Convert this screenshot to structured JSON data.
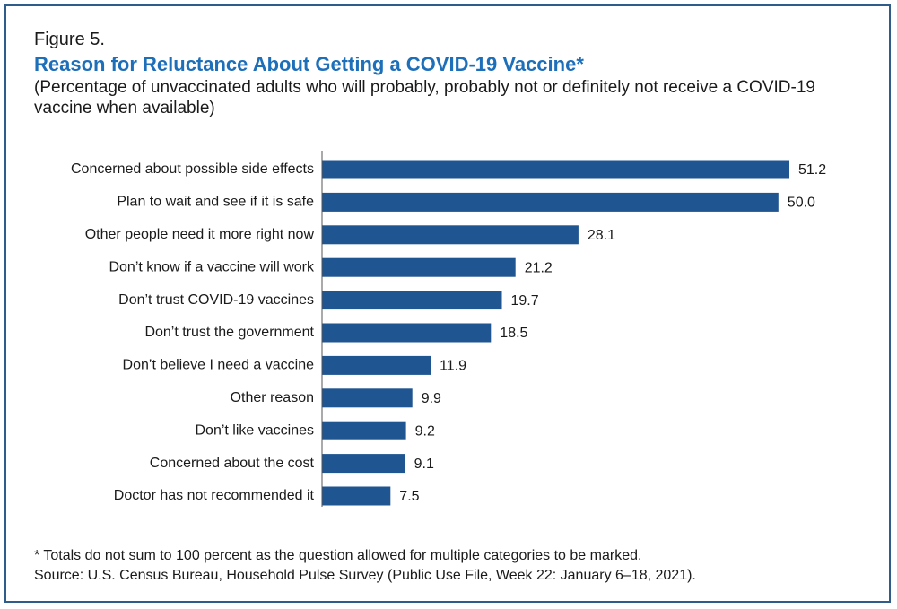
{
  "figure": {
    "label": "Figure 5.",
    "title": "Reason for Reluctance About Getting a COVID-19 Vaccine",
    "title_mark": "*",
    "subtitle": "(Percentage of unvaccinated adults who will probably, probably not or definitely not receive a COVID-19 vaccine when available)"
  },
  "footnotes": {
    "note": "* Totals do not sum to 100 percent as the question allowed for multiple categories to be marked.",
    "source": "Source: U.S. Census Bureau, Household Pulse Survey (Public Use File, Week 22: January 6–18, 2021)."
  },
  "colors": {
    "bar": "#1f5591",
    "title": "#1e6fb9",
    "frame": "#2f5d8a",
    "axis": "#555555"
  },
  "chart_data": {
    "type": "bar",
    "orientation": "horizontal",
    "categories": [
      "Concerned about possible side effects",
      "Plan to wait and see if it is safe",
      "Other people need it more right now",
      "Don’t know if a vaccine will work",
      "Don’t trust COVID-19 vaccines",
      "Don’t trust the government",
      "Don’t believe I need a vaccine",
      "Other reason",
      "Don’t like vaccines",
      "Concerned about the cost",
      "Doctor has not recommended it"
    ],
    "values": [
      51.2,
      50.0,
      28.1,
      21.2,
      19.7,
      18.5,
      11.9,
      9.9,
      9.2,
      9.1,
      7.5
    ],
    "value_labels": [
      "51.2",
      "50.0",
      "28.1",
      "21.2",
      "19.7",
      "18.5",
      "11.9",
      "9.9",
      "9.2",
      "9.1",
      "7.5"
    ],
    "xlim": [
      0,
      51.2
    ],
    "grid": false,
    "legend": "none"
  }
}
